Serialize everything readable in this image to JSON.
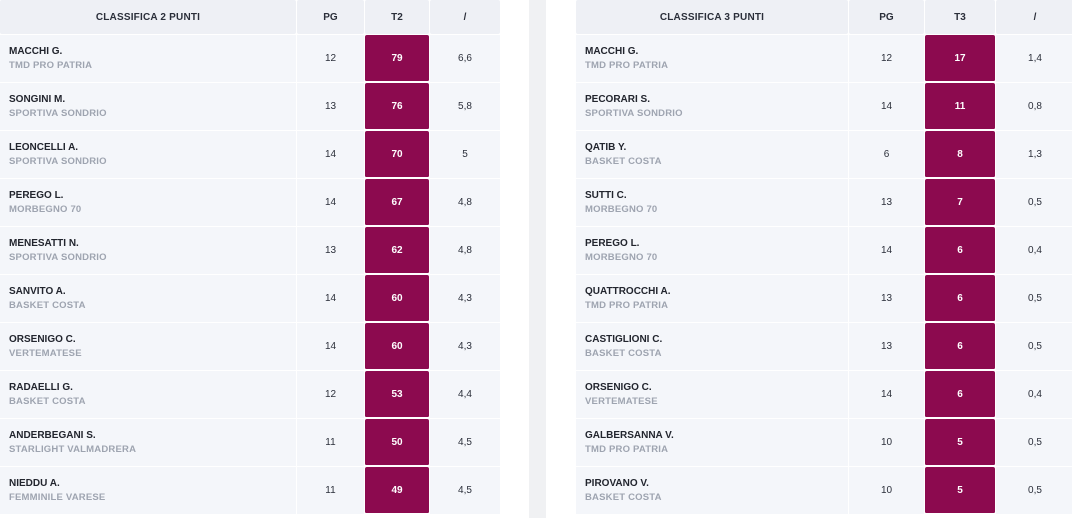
{
  "left": {
    "headers": {
      "name": "CLASSIFICA 2 PUNTI",
      "pg": "PG",
      "stat": "T2",
      "avg": "/"
    },
    "rows": [
      {
        "name": "MACCHI G.",
        "team": "TMD PRO PATRIA",
        "pg": "12",
        "stat": "79",
        "avg": "6,6"
      },
      {
        "name": "SONGINI M.",
        "team": "SPORTIVA SONDRIO",
        "pg": "13",
        "stat": "76",
        "avg": "5,8"
      },
      {
        "name": "LEONCELLI A.",
        "team": "SPORTIVA SONDRIO",
        "pg": "14",
        "stat": "70",
        "avg": "5"
      },
      {
        "name": "PEREGO L.",
        "team": "MORBEGNO 70",
        "pg": "14",
        "stat": "67",
        "avg": "4,8"
      },
      {
        "name": "MENESATTI N.",
        "team": "SPORTIVA SONDRIO",
        "pg": "13",
        "stat": "62",
        "avg": "4,8"
      },
      {
        "name": "SANVITO A.",
        "team": "BASKET COSTA",
        "pg": "14",
        "stat": "60",
        "avg": "4,3"
      },
      {
        "name": "ORSENIGO C.",
        "team": "VERTEMATESE",
        "pg": "14",
        "stat": "60",
        "avg": "4,3"
      },
      {
        "name": "RADAELLI G.",
        "team": "BASKET COSTA",
        "pg": "12",
        "stat": "53",
        "avg": "4,4"
      },
      {
        "name": "ANDERBEGANI S.",
        "team": "STARLIGHT VALMADRERA",
        "pg": "11",
        "stat": "50",
        "avg": "4,5"
      },
      {
        "name": "NIEDDU A.",
        "team": "FEMMINILE VARESE",
        "pg": "11",
        "stat": "49",
        "avg": "4,5"
      }
    ]
  },
  "right": {
    "headers": {
      "name": "CLASSIFICA 3 PUNTI",
      "pg": "PG",
      "stat": "T3",
      "avg": "/"
    },
    "rows": [
      {
        "name": "MACCHI G.",
        "team": "TMD PRO PATRIA",
        "pg": "12",
        "stat": "17",
        "avg": "1,4"
      },
      {
        "name": "PECORARI S.",
        "team": "SPORTIVA SONDRIO",
        "pg": "14",
        "stat": "11",
        "avg": "0,8"
      },
      {
        "name": "QATIB Y.",
        "team": "BASKET COSTA",
        "pg": "6",
        "stat": "8",
        "avg": "1,3"
      },
      {
        "name": "SUTTI C.",
        "team": "MORBEGNO 70",
        "pg": "13",
        "stat": "7",
        "avg": "0,5"
      },
      {
        "name": "PEREGO L.",
        "team": "MORBEGNO 70",
        "pg": "14",
        "stat": "6",
        "avg": "0,4"
      },
      {
        "name": "QUATTROCCHI A.",
        "team": "TMD PRO PATRIA",
        "pg": "13",
        "stat": "6",
        "avg": "0,5"
      },
      {
        "name": "CASTIGLIONI C.",
        "team": "BASKET COSTA",
        "pg": "13",
        "stat": "6",
        "avg": "0,5"
      },
      {
        "name": "ORSENIGO C.",
        "team": "VERTEMATESE",
        "pg": "14",
        "stat": "6",
        "avg": "0,4"
      },
      {
        "name": "GALBERSANNA V.",
        "team": "TMD PRO PATRIA",
        "pg": "10",
        "stat": "5",
        "avg": "0,5"
      },
      {
        "name": "PIROVANO V.",
        "team": "BASKET COSTA",
        "pg": "10",
        "stat": "5",
        "avg": "0,5"
      }
    ]
  },
  "colors": {
    "accent": "#8c0a4f",
    "header_bg": "#eef0f5",
    "row_bg": "#f4f6fa",
    "team_text": "#9ea4b0"
  }
}
